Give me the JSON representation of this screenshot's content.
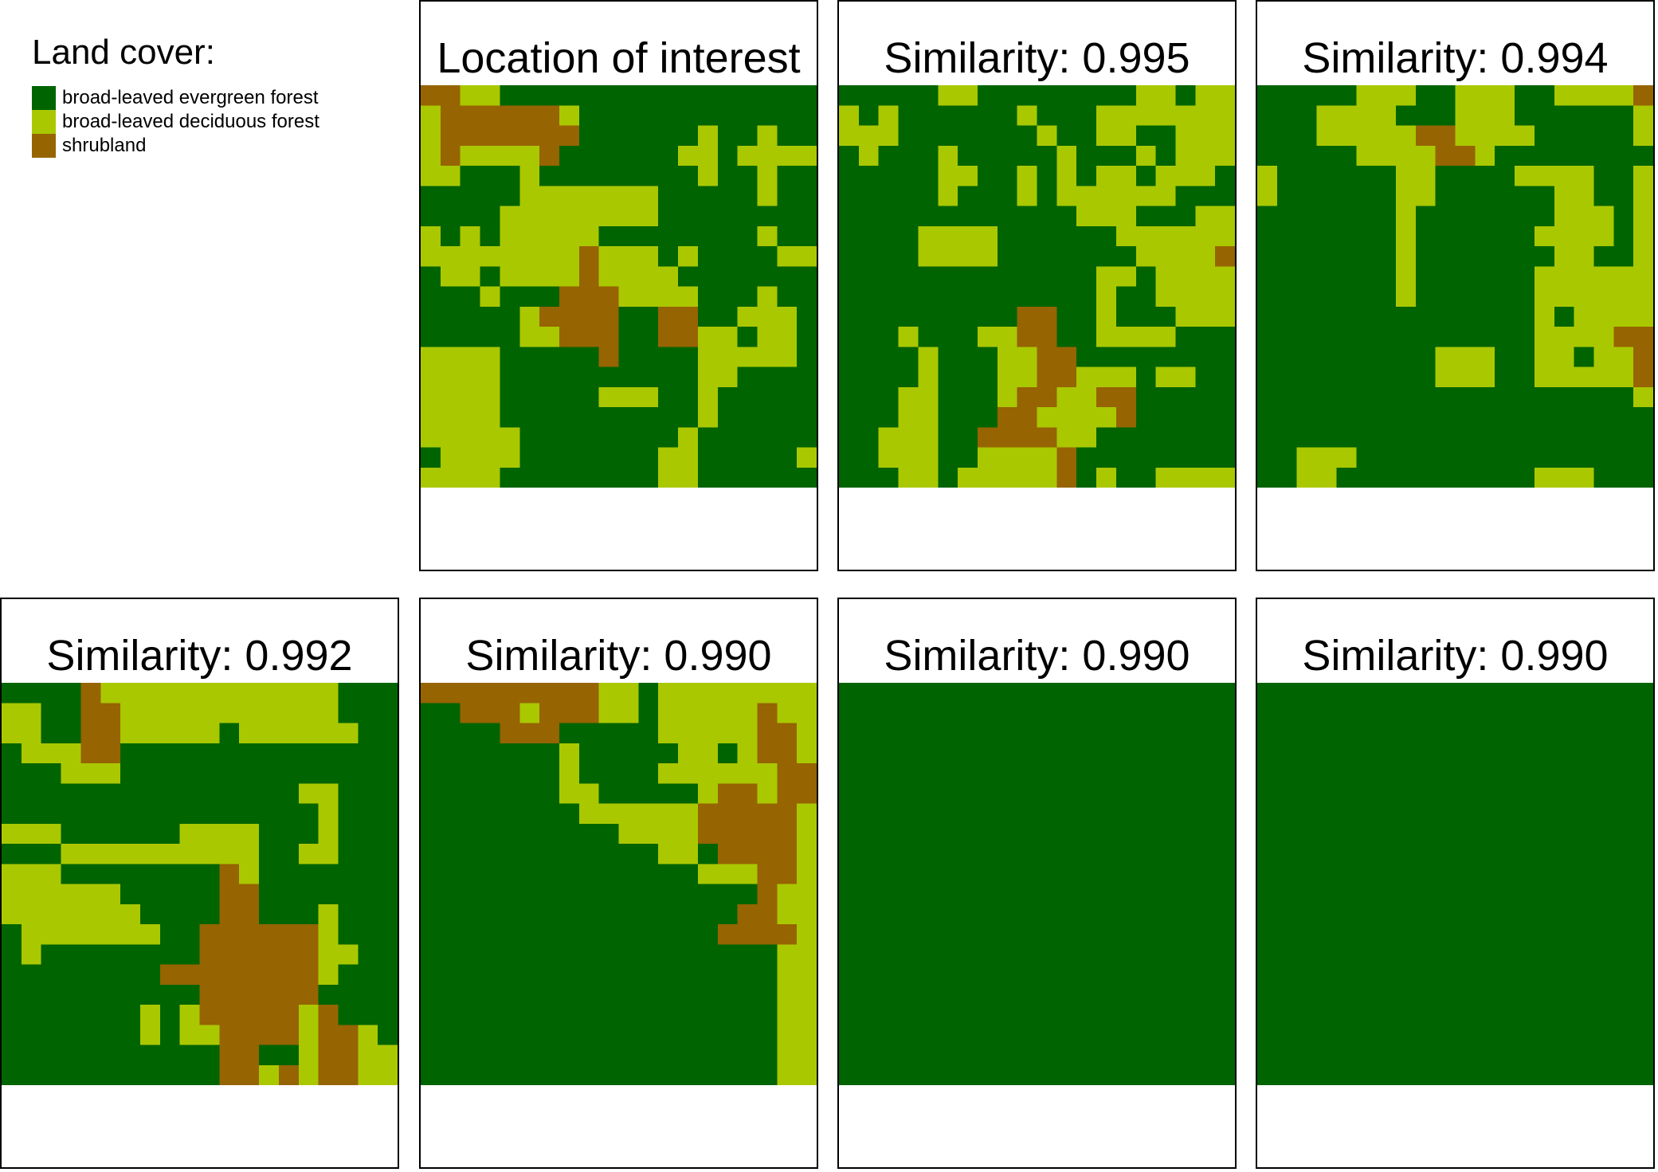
{
  "legend": {
    "title": "Land cover:",
    "classes": [
      {
        "key": "G",
        "label": "broad-leaved evergreen forest",
        "color": "#006400"
      },
      {
        "key": "L",
        "label": "broad-leaved deciduous forest",
        "color": "#aac800"
      },
      {
        "key": "S",
        "label": "shrubland",
        "color": "#966400"
      }
    ]
  },
  "panels": [
    {
      "title": "Location of interest",
      "grid": [
        "SSLLGGGGGGGGGGGGGGGG",
        "LSSSSSSLGGGGGGGGGGGG",
        "LSSSSSSSGGGGGGLGGLGG",
        "LSLLLLSGGGGGGLLGLLLL",
        "LLGGGLGGGGGGGGLGGLGG",
        "GGGGGLLLLLLLGGGGGLGG",
        "GGGGLLLLLLLLGGGGGGGG",
        "LGLGLLLLLGGGGGGGGLGG",
        "LLLLLLLLSLLLGLGGGGLL",
        "GLLGLLLLSLLLLGGGGGGG",
        "GGGLGGGSSSLLLLGGGLGG",
        "GGGGGLSSSSGGSSGGLLLG",
        "GGGGGLLSSSGGSSLLGLLG",
        "LLLLGGGGGSGGGGLLLLLG",
        "LLLLGGGGGGGGGGLLGGGG",
        "LLLLGGGGGLLLGGLGGGGG",
        "LLLLGGGGGGGGGGLGGGGG",
        "LLLLLGGGGGGGGLGGGGGG",
        "GLLLLGGGGGGGLLGGGGGL",
        "LLLLGGGGGGGGLLGGGGGG"
      ]
    },
    {
      "title": "Similarity: 0.995",
      "grid": [
        "GGGGGLLGGGGGGGGLLGLL",
        "LGLGGGGGGLGGGLLLLLLL",
        "LLLGGGGGGGLGGLLGGLLL",
        "GLGGGLGGGGGLGGGLGLLL",
        "GGGGGLLGGLGLGLLGLLLG",
        "GGGGGLGGGLGLLLLLLGGG",
        "GGGGGGGGGGGGLLLGGGLL",
        "GGGGLLLLGGGGGGLLLLLL",
        "GGGGLLLLGGGGGGGLLLLS",
        "GGGGGGGGGGGGGLLGLLLL",
        "GGGGGGGGGGGGGLGGLLLL",
        "GGGGGGGGGSSGGLGGGLLL",
        "GGGLGGGLLSSGGLLLLGGG",
        "GGGGLGGGLLSSGGGGGGGG",
        "GGGGLGGGLLSSLLLGLLGG",
        "GGGLLGGGLSSLLSSGGGGG",
        "GGGLLGGGSSLLLLSGGGGG",
        "GGLLLGGSSSSLLGGGGGGG",
        "GGLLLGGLLLLSGGGGGGGG",
        "GGGLLGLLLLLSGLGGLLLL"
      ]
    },
    {
      "title": "Similarity: 0.994",
      "grid": [
        "GGGGGLLLGGLLLGGLLLLS",
        "GGGLLLLGGGLLLGGGGGGL",
        "GGGLLLLLSSLLLLGGGGGL",
        "GGGGGLLLLSSLGGGGGGGG",
        "LGGGGGGLLGGGGLLLLGGL",
        "LGGGGGGLLGGGGGGLLGGL",
        "GGGGGGGLGGGGGGGLLLGL",
        "GGGGGGGLGGGGGGLLLLGL",
        "GGGGGGGLGGGGGGGLLGGL",
        "GGGGGGGLGGGGGGLLLLLL",
        "GGGGGGGLGGGGGGLLLLLL",
        "GGGGGGGGGGGGGGLGLLLL",
        "GGGGGGGGGGGGGGLLLLSS",
        "GGGGGGGGGLLLGGLLGLLS",
        "GGGGGGGGGLLLGGLLLLLS",
        "GGGGGGGGGGGGGGGGGGGL",
        "GGGGGGGGGGGGGGGGGGGG",
        "GGGGGGGGGGGGGGGGGGGG",
        "GGLLLGGGGGGGGGGGGGGG",
        "GGLLGGGGGGGGGGLLLGGG"
      ]
    },
    {
      "title": "Similarity: 0.992",
      "grid": [
        "GGGGSLLLLLLLLLLLLGGG",
        "LLGGSSLLLLLLLLLLLGGG",
        "LLGGSSLLLLLGLLLLLLGG",
        "GLLLSSGGGGGGGGGGGGGG",
        "GGGLLLGGGGGGGGGGGGGG",
        "GGGGGGGGGGGGGGGLLGGG",
        "GGGGGGGGGGGGGGGGLGGG",
        "LLLGGGGGGLLLLGGGLGGG",
        "GGGLLLLLLLLLLGGLLGGG",
        "LLLGGGGGGGGSLGGGGGGG",
        "LLLLLLGGGGGSSGGGGGGG",
        "LLLLLLLGGGGSSGGGLGGG",
        "GLLLLLLLGGSSSSSSLGGG",
        "GLGGGGGGGGSSSSSSLLGG",
        "GGGGGGGGSSSSSSSSLGGG",
        "GGGGGGGGGGSSSSSSGGGG",
        "GGGGGGGLGLSSSSSLSGGG",
        "GGGGGGGLGLLSSSSLSSLG",
        "GGGGGGGGGGGSSGGLSSLL",
        "GGGGGGGGGGGSSLSLSSLL"
      ]
    },
    {
      "title": "Similarity: 0.990",
      "grid": [
        "SSSSSSSSSLLGLLLLLLLL",
        "GGSSSLSSSLLGLLLLLSLL",
        "GGGGSSSGGGGGLLLLLSSL",
        "GGGGGGGLGGGGGLLGLSSL",
        "GGGGGGGLGGGGLLLLLLSS",
        "GGGGGGGLLGGGGGLSSLSS",
        "GGGGGGGGLLLLLLSSSSSL",
        "GGGGGGGGGGLLLLSSSSSL",
        "GGGGGGGGGGGGLLGSSSSL",
        "GGGGGGGGGGGGGGLLLSSL",
        "GGGGGGGGGGGGGGGGGSLL",
        "GGGGGGGGGGGGGGGGSSLL",
        "GGGGGGGGGGGGGGGSSSSL",
        "GGGGGGGGGGGGGGGGGGLL",
        "GGGGGGGGGGGGGGGGGGLL",
        "GGGGGGGGGGGGGGGGGGLL",
        "GGGGGGGGGGGGGGGGGGLL",
        "GGGGGGGGGGGGGGGGGGLL",
        "GGGGGGGGGGGGGGGGGGLL",
        "GGGGGGGGGGGGGGGGGGLL"
      ]
    },
    {
      "title": "Similarity: 0.990",
      "grid": [
        "GGGGGGGGGGGGGGGGGGGG",
        "GGGGGGGGGGGGGGGGGGGG",
        "GGGGGGGGGGGGGGGGGGGG",
        "GGGGGGGGGGGGGGGGGGGG",
        "GGGGGGGGGGGGGGGGGGGG",
        "GGGGGGGGGGGGGGGGGGGG",
        "GGGGGGGGGGGGGGGGGGGG",
        "GGGGGGGGGGGGGGGGGGGG",
        "GGGGGGGGGGGGGGGGGGGG",
        "GGGGGGGGGGGGGGGGGGGG",
        "GGGGGGGGGGGGGGGGGGGG",
        "GGGGGGGGGGGGGGGGGGGG",
        "GGGGGGGGGGGGGGGGGGGG",
        "GGGGGGGGGGGGGGGGGGGG",
        "GGGGGGGGGGGGGGGGGGGG",
        "GGGGGGGGGGGGGGGGGGGG",
        "GGGGGGGGGGGGGGGGGGGG",
        "GGGGGGGGGGGGGGGGGGGG",
        "GGGGGGGGGGGGGGGGGGGG",
        "GGGGGGGGGGGGGGGGGGGG"
      ]
    },
    {
      "title": "Similarity: 0.990",
      "grid": [
        "GGGGGGGGGGGGGGGGGGGG",
        "GGGGGGGGGGGGGGGGGGGG",
        "GGGGGGGGGGGGGGGGGGGG",
        "GGGGGGGGGGGGGGGGGGGG",
        "GGGGGGGGGGGGGGGGGGGG",
        "GGGGGGGGGGGGGGGGGGGG",
        "GGGGGGGGGGGGGGGGGGGG",
        "GGGGGGGGGGGGGGGGGGGG",
        "GGGGGGGGGGGGGGGGGGGG",
        "GGGGGGGGGGGGGGGGGGGG",
        "GGGGGGGGGGGGGGGGGGGG",
        "GGGGGGGGGGGGGGGGGGGG",
        "GGGGGGGGGGGGGGGGGGGG",
        "GGGGGGGGGGGGGGGGGGGG",
        "GGGGGGGGGGGGGGGGGGGG",
        "GGGGGGGGGGGGGGGGGGGG",
        "GGGGGGGGGGGGGGGGGGGG",
        "GGGGGGGGGGGGGGGGGGGG",
        "GGGGGGGGGGGGGGGGGGGG",
        "GGGGGGGGGGGGGGGGGGGG"
      ]
    }
  ]
}
